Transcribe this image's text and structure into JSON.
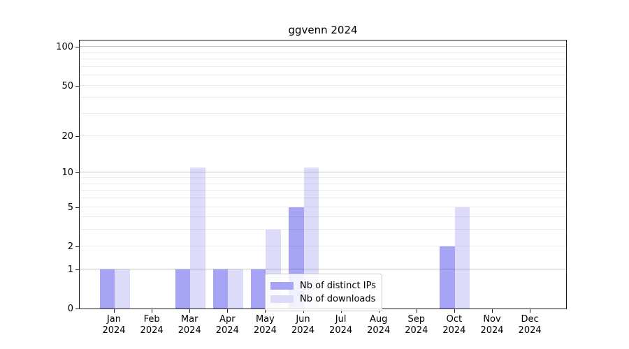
{
  "figure": {
    "title": "ggvenn 2024"
  },
  "chart_data": {
    "type": "bar",
    "title": "ggvenn 2024",
    "categories": [
      "Jan",
      "Feb",
      "Mar",
      "Apr",
      "May",
      "Jun",
      "Jul",
      "Aug",
      "Sep",
      "Oct",
      "Nov",
      "Dec"
    ],
    "year_label": "2024",
    "series": [
      {
        "name": "Nb of distinct IPs",
        "color": "#a7a4f6",
        "values": [
          1,
          0,
          1,
          1,
          1,
          5,
          0,
          0,
          0,
          2,
          0,
          0
        ]
      },
      {
        "name": "Nb of downloads",
        "color": "#dcdbfa",
        "values": [
          1,
          0,
          11,
          1,
          3,
          11,
          0,
          0,
          0,
          5,
          0,
          0
        ]
      }
    ],
    "y_axis": {
      "scale": "log10(1+x)",
      "tick_labels": [
        0,
        1,
        2,
        5,
        10,
        20,
        50,
        100
      ],
      "major_gridlines": [
        1,
        10,
        100
      ],
      "minor_gridlines": [
        2,
        3,
        4,
        5,
        6,
        7,
        8,
        9,
        20,
        30,
        40,
        50,
        60,
        70,
        80,
        90
      ],
      "range_max": 100
    },
    "x_axis": {
      "label_format": "month over year"
    },
    "legend": {
      "position": "lower center",
      "entries": [
        "Nb of distinct IPs",
        "Nb of downloads"
      ]
    },
    "grid": "on, drawn above bars"
  }
}
